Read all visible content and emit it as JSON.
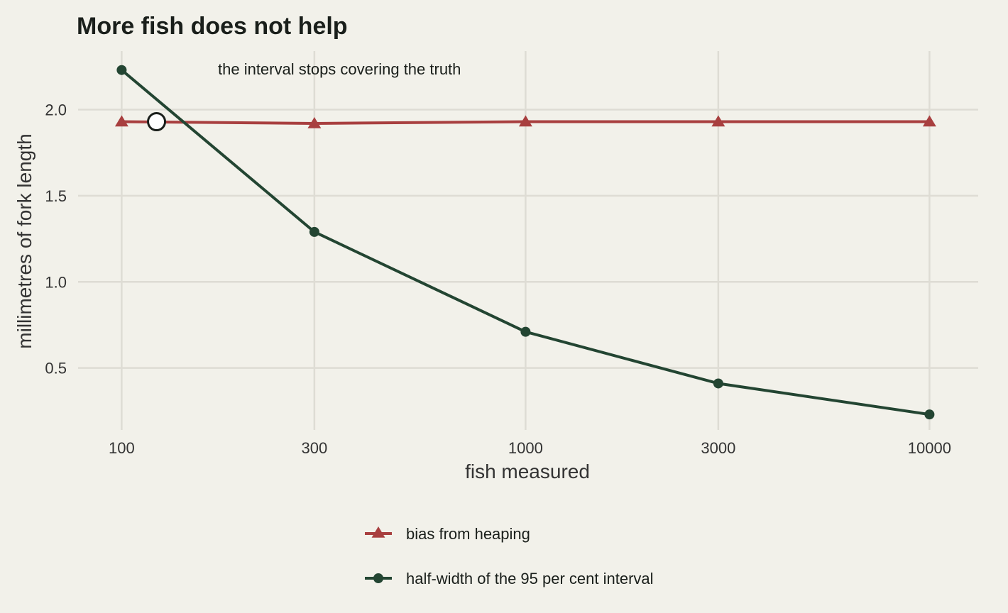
{
  "chart_data": {
    "type": "line",
    "title": "More fish does not help",
    "xlabel": "fish measured",
    "ylabel": "millimetres of fork length",
    "x_scale": "log",
    "x": [
      100,
      300,
      1000,
      3000,
      10000
    ],
    "x_ticks": [
      100,
      300,
      1000,
      3000,
      10000
    ],
    "x_tick_labels": [
      "100",
      "300",
      "1000",
      "3000",
      "10000"
    ],
    "xlim": [
      78,
      13200
    ],
    "y_ticks": [
      0.5,
      1.0,
      1.5,
      2.0
    ],
    "y_tick_labels": [
      "0.5",
      "1.0",
      "1.5",
      "2.0"
    ],
    "ylim": [
      0.14,
      2.34
    ],
    "grid": true,
    "legend_position": "bottom",
    "series": [
      {
        "name": "bias from heaping",
        "values": [
          1.93,
          1.92,
          1.93,
          1.93,
          1.93
        ],
        "color": "#a83f3f",
        "marker": "triangle"
      },
      {
        "name": "half-width of the 95 per cent interval",
        "values": [
          2.23,
          1.29,
          0.71,
          0.41,
          0.23
        ],
        "color": "#234532",
        "marker": "circle"
      }
    ],
    "annotations": [
      {
        "text": "the interval stops covering the truth",
        "x": 122,
        "y": 1.93,
        "marker": "open-circle"
      }
    ]
  }
}
